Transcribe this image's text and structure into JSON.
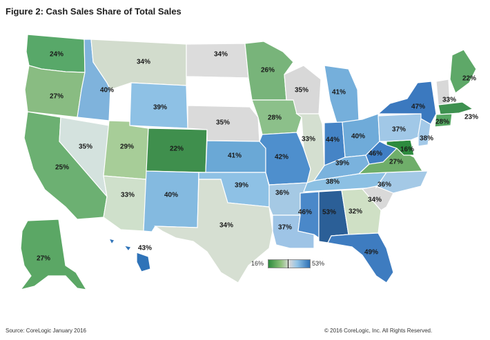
{
  "figure": {
    "title": "Figure 2: Cash Sales Share of Total Sales"
  },
  "legend": {
    "min_label": "16%",
    "max_label": "53%",
    "colors": [
      "#2e8b3e",
      "#8cc07a",
      "#d9d9d9",
      "#8fc2e6",
      "#2d6fb3"
    ]
  },
  "states": {
    "wa": "24%",
    "or": "27%",
    "ca": "25%",
    "nv": "35%",
    "id": "40%",
    "mt": "34%",
    "wy": "39%",
    "ut": "29%",
    "az": "33%",
    "co": "22%",
    "nm": "40%",
    "nd": "34%",
    "sd": "",
    "ne": "35%",
    "ks": "41%",
    "ok": "39%",
    "tx": "34%",
    "mn": "26%",
    "ia": "28%",
    "mo": "42%",
    "ar": "36%",
    "la": "37%",
    "wi": "35%",
    "il": "33%",
    "mi": "41%",
    "in": "44%",
    "oh": "40%",
    "ky": "39%",
    "tn": "38%",
    "ms": "46%",
    "al": "53%",
    "ga": "32%",
    "fl": "49%",
    "sc": "34%",
    "nc": "36%",
    "va": "27%",
    "wv": "46%",
    "pa": "37%",
    "ny": "47%",
    "me": "22%",
    "vt": "33%",
    "ct": "28%",
    "ma": "23%",
    "nj": "38%",
    "md": "16%",
    "ak": "27%",
    "hi": "43%"
  },
  "footer": {
    "source": "Source: CoreLogic January 2016",
    "copyright": "© 2016 CoreLogic, Inc. All Rights Reserved."
  }
}
